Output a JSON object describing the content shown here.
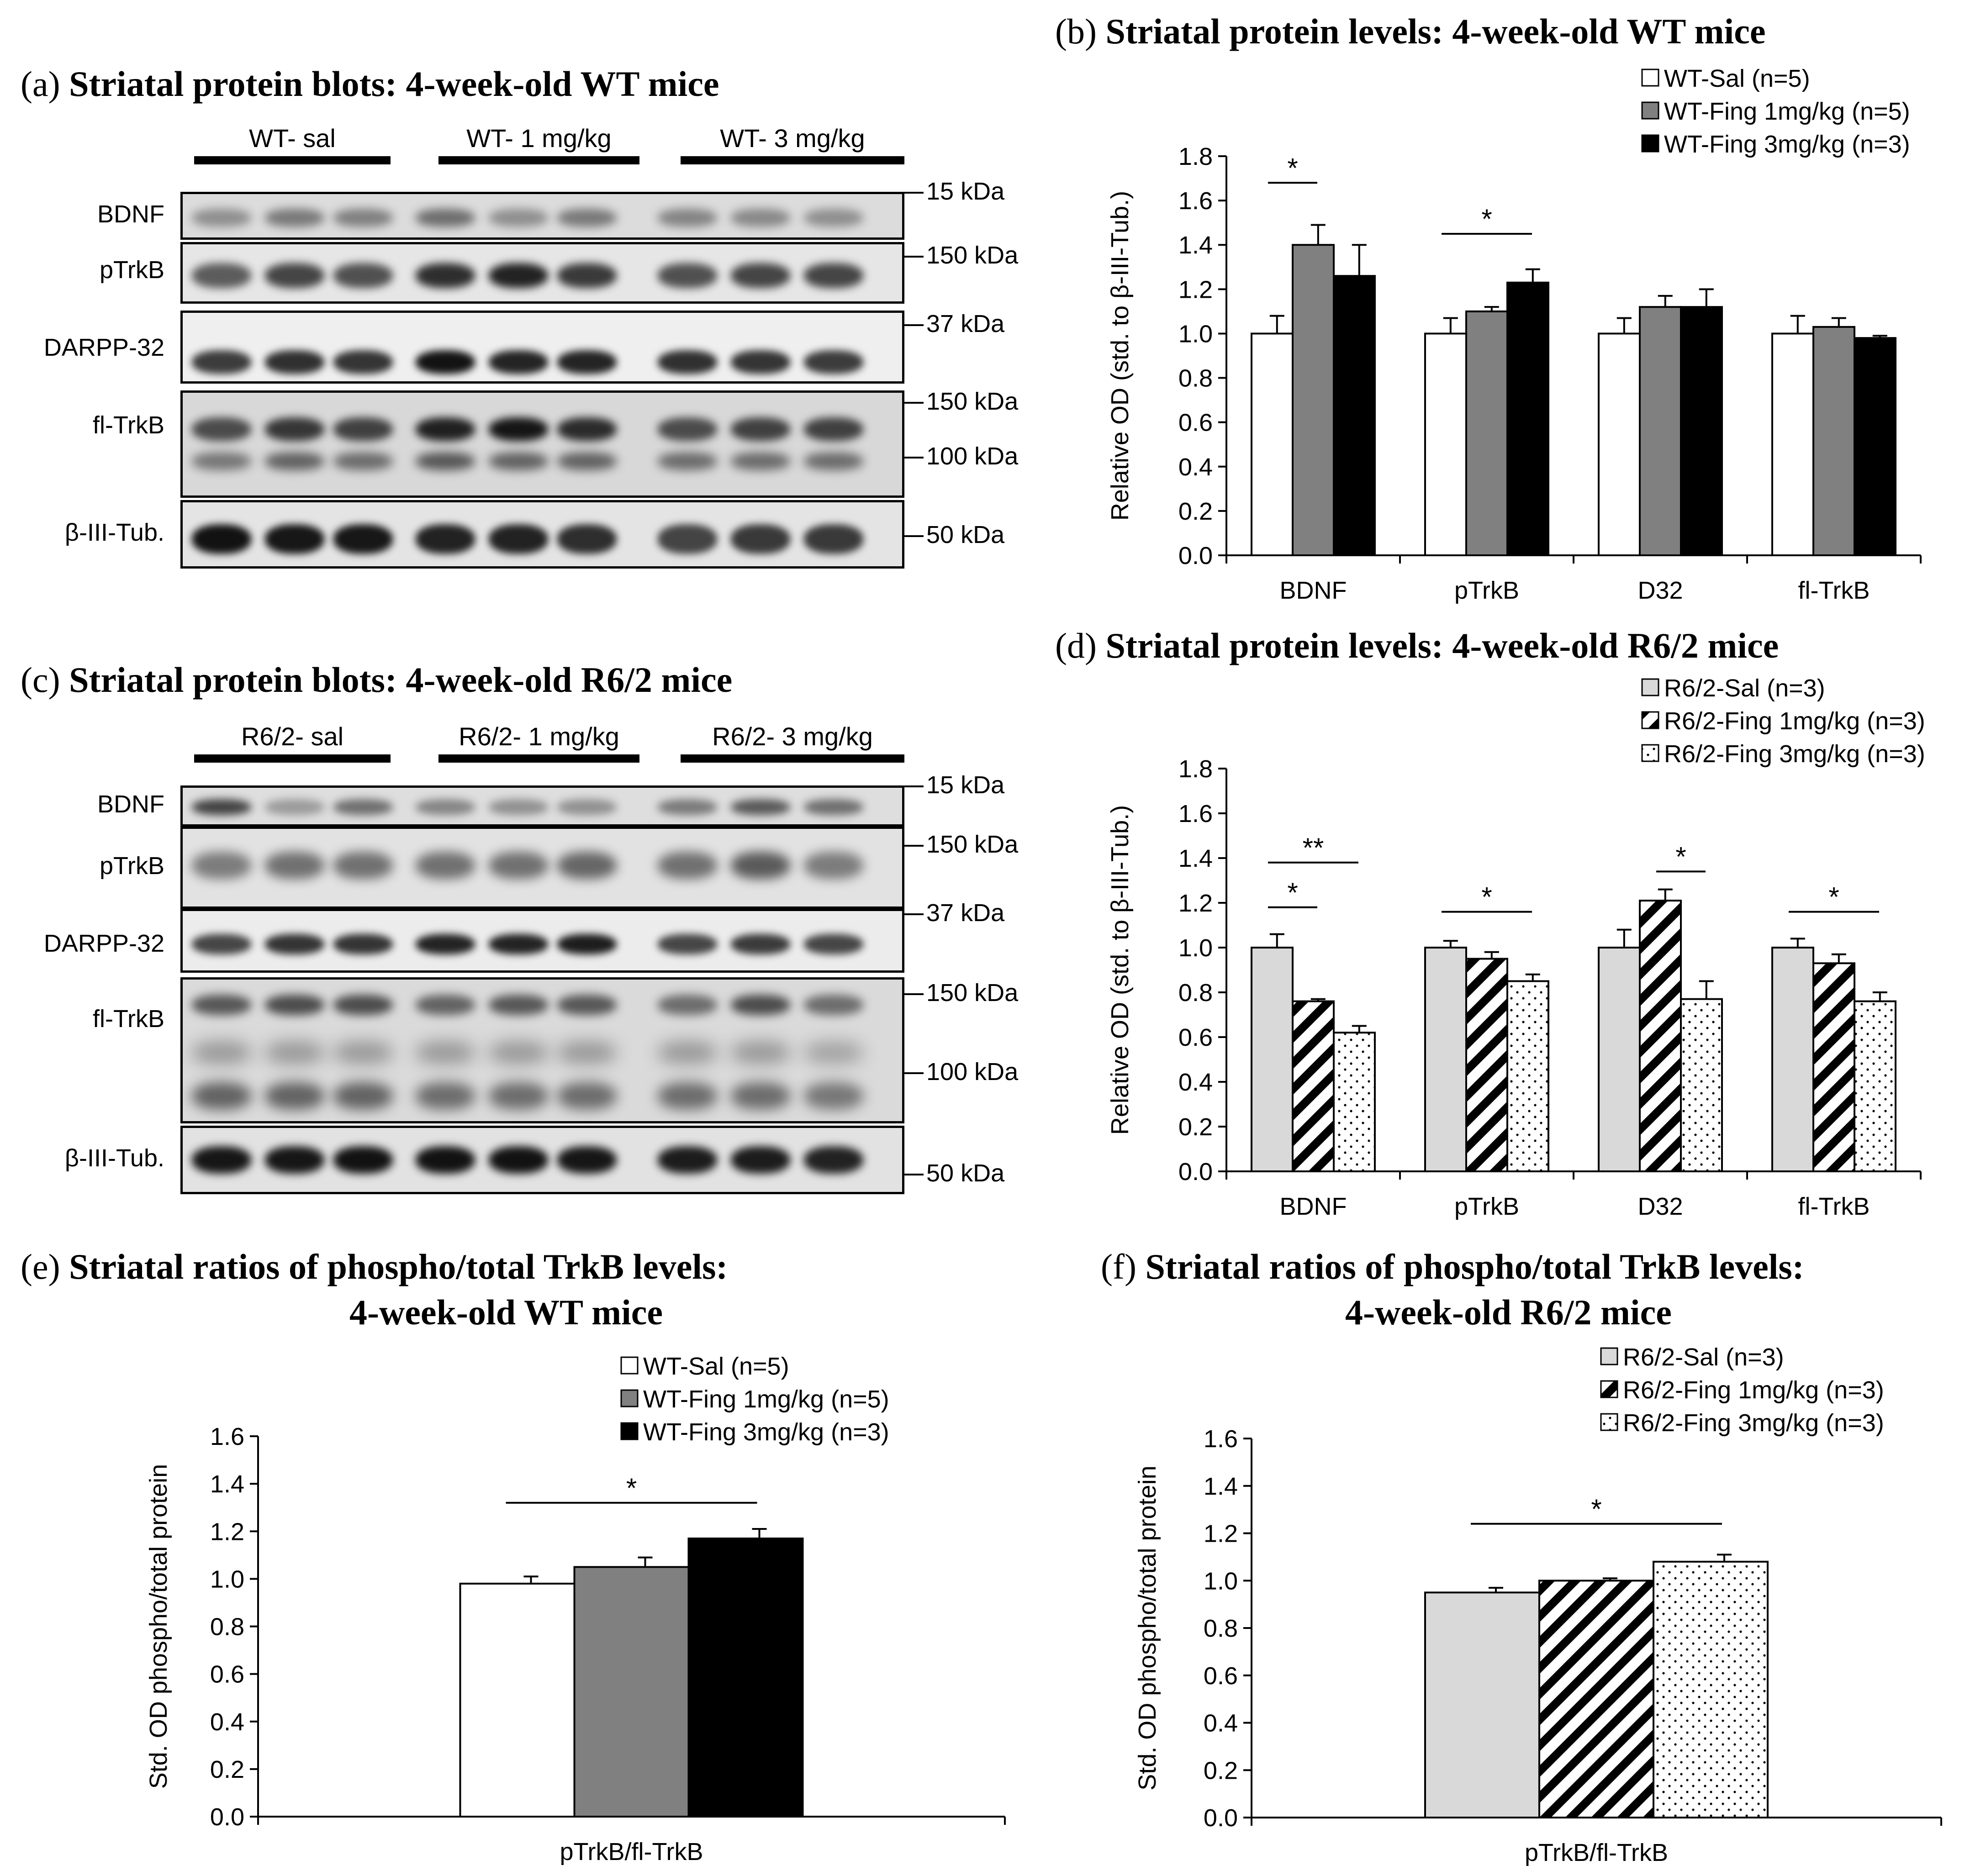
{
  "panels": {
    "a": {
      "letter": "(a)",
      "title": "Striatal protein blots: 4-week-old WT mice",
      "groups": [
        "WT- sal",
        "WT- 1 mg/kg",
        "WT- 3 mg/kg"
      ],
      "rows": [
        "BDNF",
        "pTrkB",
        "DARPP-32",
        "fl-TrkB",
        "β-III-Tub."
      ],
      "kda": [
        "15 kDa",
        "150 kDa",
        "37 kDa",
        "150 kDa",
        "100 kDa",
        "50 kDa"
      ]
    },
    "b": {
      "letter": "(b)",
      "title": "Striatal protein levels: 4-week-old WT mice"
    },
    "c": {
      "letter": "(c)",
      "title": "Striatal protein blots: 4-week-old R6/2 mice",
      "groups": [
        "R6/2- sal",
        "R6/2- 1 mg/kg",
        "R6/2- 3 mg/kg"
      ],
      "rows": [
        "BDNF",
        "pTrkB",
        "DARPP-32",
        "fl-TrkB",
        "β-III-Tub."
      ],
      "kda": [
        "15 kDa",
        "150 kDa",
        "37 kDa",
        "150 kDa",
        "100 kDa",
        "50 kDa"
      ]
    },
    "d": {
      "letter": "(d)",
      "title": "Striatal protein levels: 4-week-old R6/2 mice"
    },
    "e": {
      "letter": "(e)",
      "title_line1": "Striatal ratios of phospho/total TrkB levels:",
      "title_line2": "4-week-old WT mice"
    },
    "f": {
      "letter": "(f)",
      "title_line1": "Striatal ratios of phospho/total TrkB levels:",
      "title_line2": "4-week-old R6/2 mice"
    }
  },
  "chart_data": [
    {
      "id": "b",
      "type": "bar",
      "categories": [
        "BDNF",
        "pTrkB",
        "D32",
        "fl-TrkB"
      ],
      "ylabel": "Relative OD (std. to β-III-Tub.)",
      "ylim": [
        0,
        1.8
      ],
      "yticks": [
        "0.0",
        "0.2",
        "0.4",
        "0.6",
        "0.8",
        "1.0",
        "1.2",
        "1.4",
        "1.6",
        "1.8"
      ],
      "series": [
        {
          "name": "WT-Sal (n=5)",
          "pattern": "white",
          "values": [
            1.0,
            1.0,
            1.0,
            1.0
          ],
          "errors": [
            0.08,
            0.07,
            0.07,
            0.08
          ]
        },
        {
          "name": "WT-Fing 1mg/kg (n=5)",
          "pattern": "gray",
          "values": [
            1.4,
            1.1,
            1.12,
            1.03
          ],
          "errors": [
            0.09,
            0.02,
            0.05,
            0.04
          ]
        },
        {
          "name": "WT-Fing 3mg/kg (n=3)",
          "pattern": "black",
          "values": [
            1.26,
            1.23,
            1.12,
            0.98
          ],
          "errors": [
            0.14,
            0.06,
            0.08,
            0.01
          ]
        }
      ],
      "significance": [
        {
          "label": "*",
          "category": 0,
          "from": 0,
          "to": 1,
          "y": 1.68
        },
        {
          "label": "*",
          "category": 1,
          "from": 0,
          "to": 2,
          "y": 1.45
        }
      ]
    },
    {
      "id": "d",
      "type": "bar",
      "categories": [
        "BDNF",
        "pTrkB",
        "D32",
        "fl-TrkB"
      ],
      "ylabel": "Relative OD (std. to β-III-Tub.)",
      "ylim": [
        0,
        1.8
      ],
      "yticks": [
        "0.0",
        "0.2",
        "0.4",
        "0.6",
        "0.8",
        "1.0",
        "1.2",
        "1.4",
        "1.6",
        "1.8"
      ],
      "series": [
        {
          "name": "R6/2-Sal (n=3)",
          "pattern": "lightgray",
          "values": [
            1.0,
            1.0,
            1.0,
            1.0
          ],
          "errors": [
            0.06,
            0.03,
            0.08,
            0.04
          ]
        },
        {
          "name": "R6/2-Fing  1mg/kg (n=3)",
          "pattern": "stripes",
          "values": [
            0.76,
            0.95,
            1.21,
            0.93
          ],
          "errors": [
            0.01,
            0.03,
            0.05,
            0.04
          ]
        },
        {
          "name": "R6/2-Fing 3mg/kg (n=3)",
          "pattern": "dots",
          "values": [
            0.62,
            0.85,
            0.77,
            0.76
          ],
          "errors": [
            0.03,
            0.03,
            0.08,
            0.04
          ]
        }
      ],
      "significance": [
        {
          "label": "**",
          "category": 0,
          "from": 0,
          "to": 2,
          "y": 1.38
        },
        {
          "label": "*",
          "category": 0,
          "from": 0,
          "to": 1,
          "y": 1.18
        },
        {
          "label": "*",
          "category": 1,
          "from": 0,
          "to": 2,
          "y": 1.16
        },
        {
          "label": "*",
          "category": 2,
          "from": 1,
          "to": 2,
          "y": 1.34
        },
        {
          "label": "*",
          "category": 3,
          "from": 0,
          "to": 2,
          "y": 1.16
        }
      ]
    },
    {
      "id": "e",
      "type": "bar",
      "categories": [
        "pTrkB/fl-TrkB"
      ],
      "ylabel": "Std. OD phospho/total protein",
      "ylim": [
        0,
        1.6
      ],
      "yticks": [
        "0.0",
        "0.2",
        "0.4",
        "0.6",
        "0.8",
        "1.0",
        "1.2",
        "1.4",
        "1.6"
      ],
      "series": [
        {
          "name": "WT-Sal (n=5)",
          "pattern": "white",
          "values": [
            0.98
          ],
          "errors": [
            0.03
          ]
        },
        {
          "name": "WT-Fing 1mg/kg (n=5)",
          "pattern": "gray",
          "values": [
            1.05
          ],
          "errors": [
            0.04
          ]
        },
        {
          "name": "WT-Fing 3mg/kg (n=3)",
          "pattern": "black",
          "values": [
            1.17
          ],
          "errors": [
            0.04
          ]
        }
      ],
      "significance": [
        {
          "label": "*",
          "category": 0,
          "from": 0,
          "to": 2,
          "y": 1.32
        }
      ]
    },
    {
      "id": "f",
      "type": "bar",
      "categories": [
        "pTrkB/fl-TrkB"
      ],
      "ylabel": "Std. OD phospho/total protein",
      "ylim": [
        0,
        1.6
      ],
      "yticks": [
        "0.0",
        "0.2",
        "0.4",
        "0.6",
        "0.8",
        "1.0",
        "1.2",
        "1.4",
        "1.6"
      ],
      "series": [
        {
          "name": "R6/2-Sal (n=3)",
          "pattern": "lightgray",
          "values": [
            0.95
          ],
          "errors": [
            0.02
          ]
        },
        {
          "name": "R6/2-Fing  1mg/kg (n=3)",
          "pattern": "stripes",
          "values": [
            1.0
          ],
          "errors": [
            0.01
          ]
        },
        {
          "name": "R6/2-Fing 3mg/kg (n=3)",
          "pattern": "dots",
          "values": [
            1.08
          ],
          "errors": [
            0.03
          ]
        }
      ],
      "significance": [
        {
          "label": "*",
          "category": 0,
          "from": 0,
          "to": 2,
          "y": 1.24
        }
      ]
    }
  ]
}
